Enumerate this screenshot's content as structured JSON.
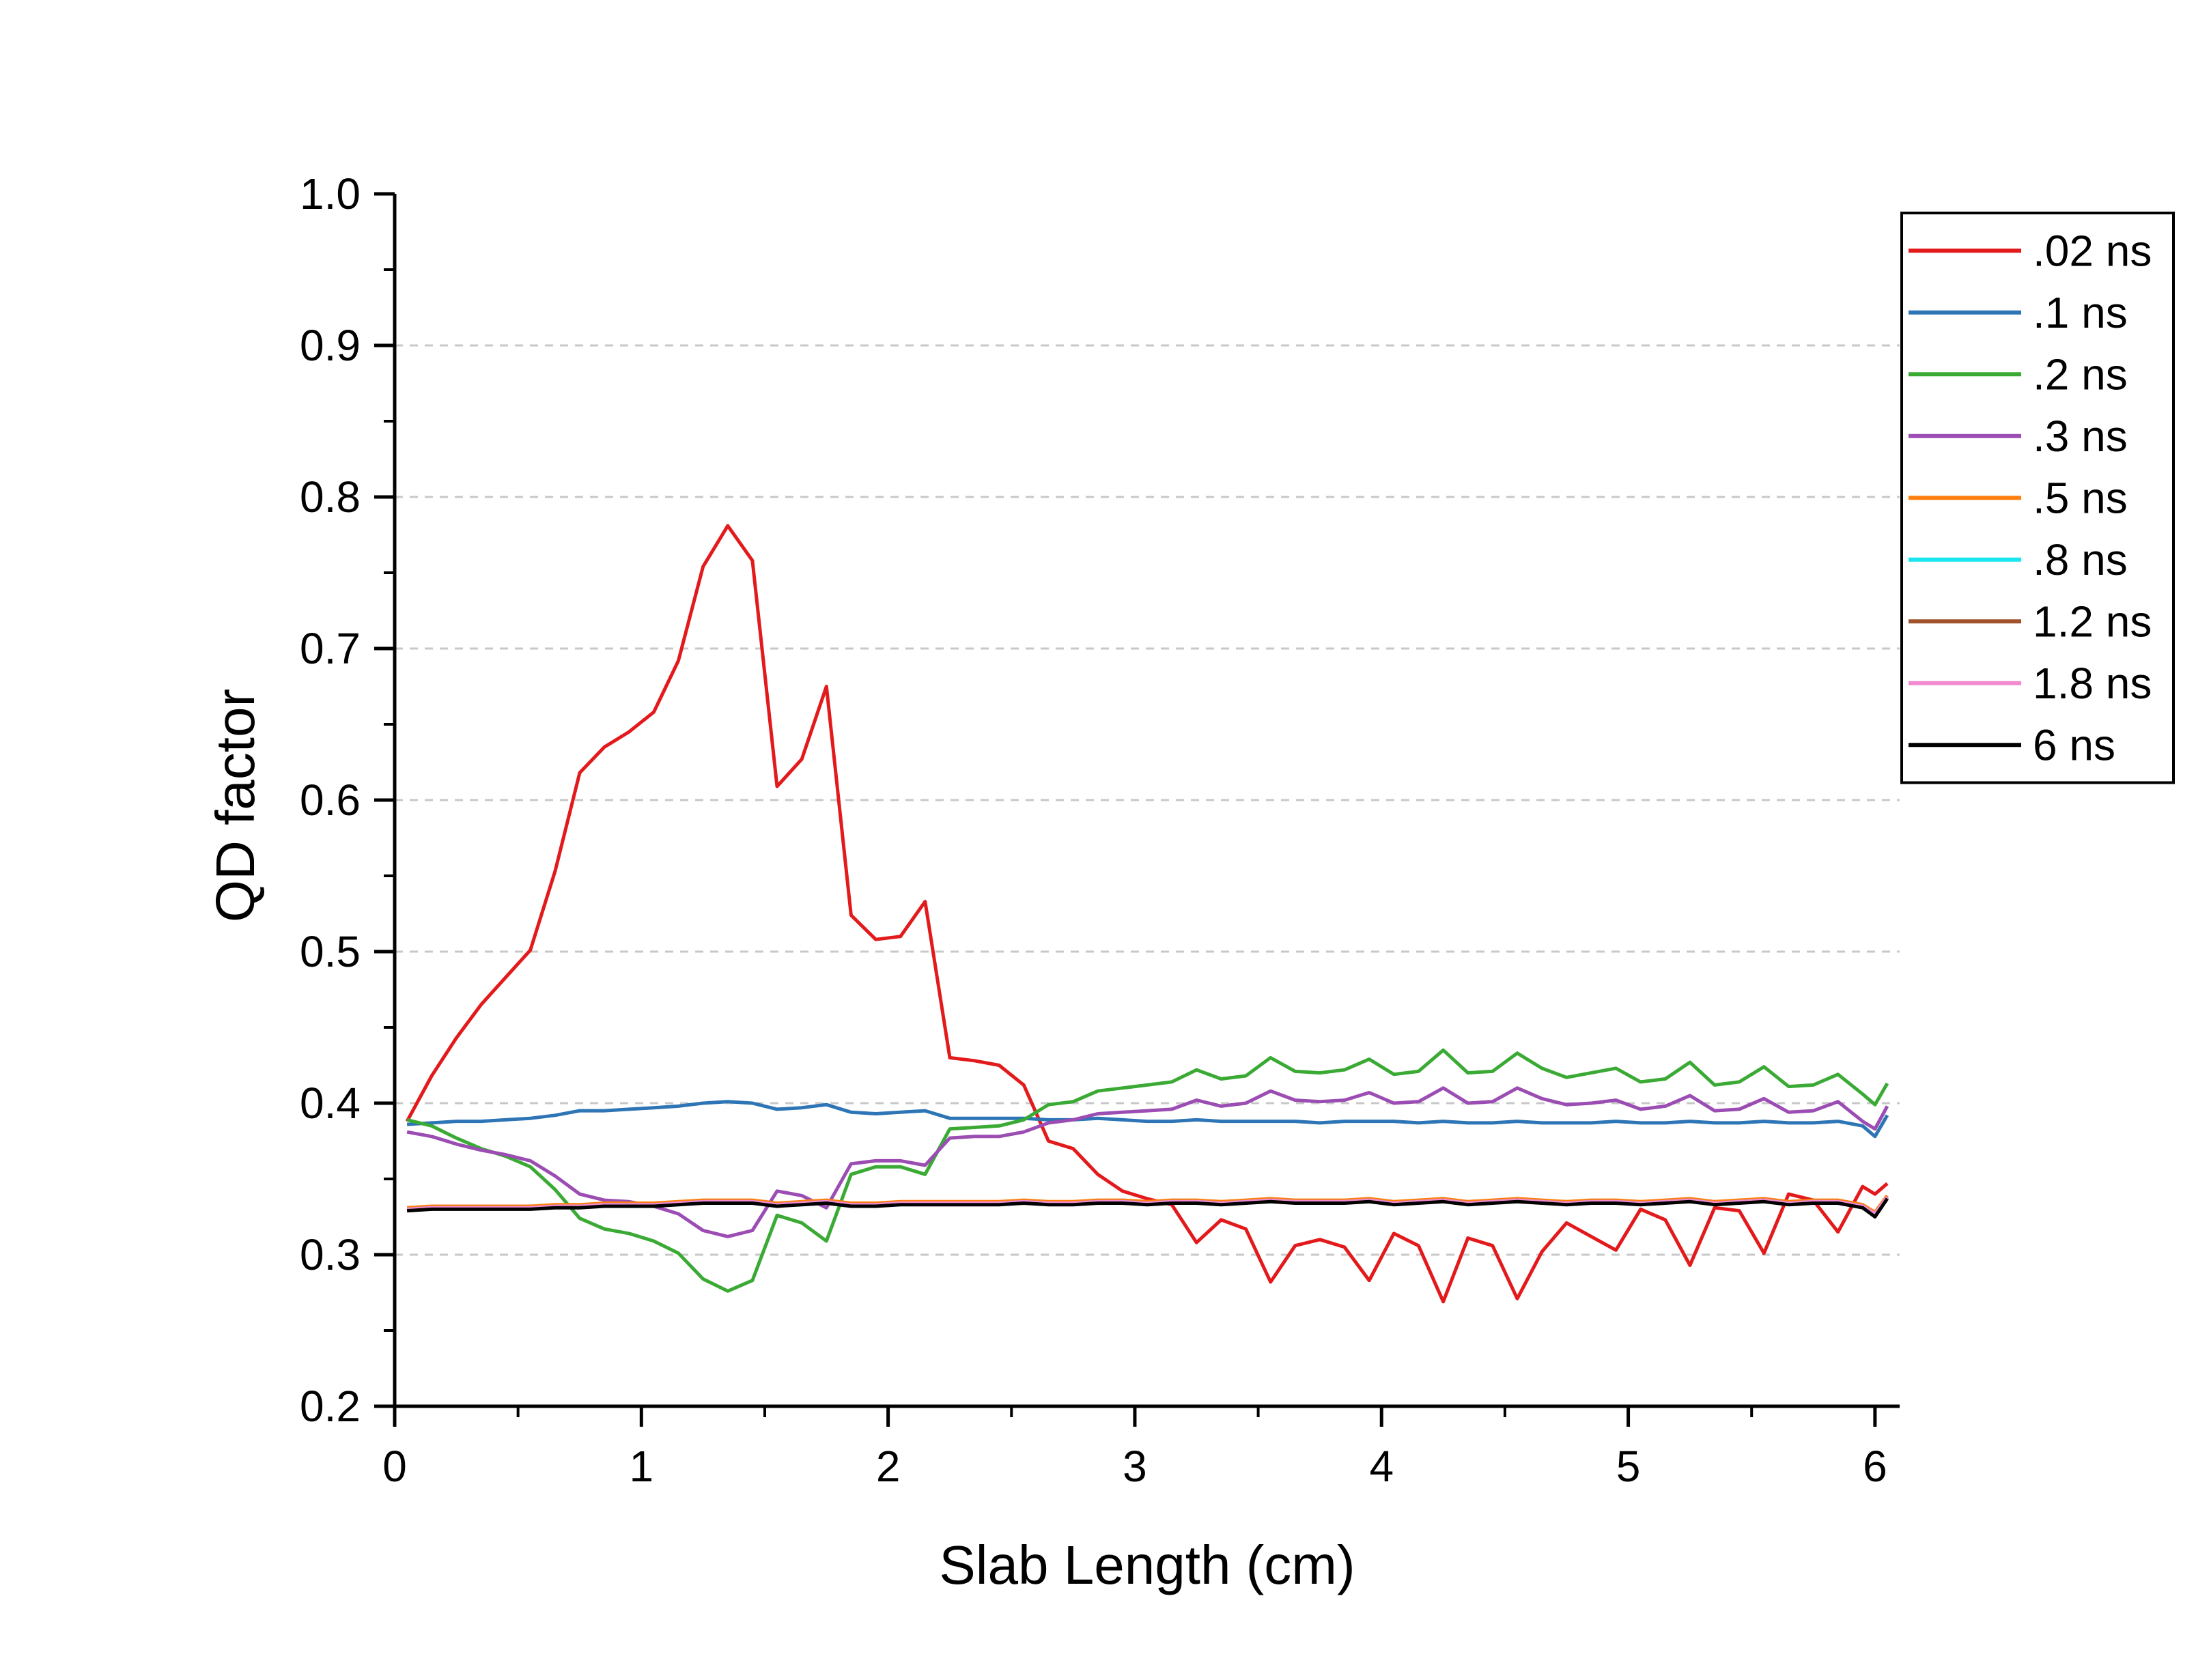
{
  "chart_data": {
    "type": "line",
    "title": "",
    "xlabel": "Slab Length (cm)",
    "ylabel": "QD factor",
    "xlim": [
      0,
      6.1
    ],
    "ylim": [
      0.2,
      1.0
    ],
    "x_ticks": [
      "0",
      "1",
      "2",
      "3",
      "4",
      "5",
      "6"
    ],
    "y_ticks": [
      "0.2",
      "0.3",
      "0.4",
      "0.5",
      "0.6",
      "0.7",
      "0.8",
      "0.9",
      "1.0"
    ],
    "grid": "horizontal dashed",
    "legend_position": "top-right",
    "x": [
      0.05,
      0.15,
      0.25,
      0.35,
      0.45,
      0.55,
      0.65,
      0.75,
      0.85,
      0.95,
      1.05,
      1.15,
      1.25,
      1.35,
      1.45,
      1.55,
      1.65,
      1.75,
      1.85,
      1.95,
      2.05,
      2.15,
      2.25,
      2.35,
      2.45,
      2.55,
      2.65,
      2.75,
      2.85,
      2.95,
      3.05,
      3.15,
      3.25,
      3.35,
      3.45,
      3.55,
      3.65,
      3.75,
      3.85,
      3.95,
      4.05,
      4.15,
      4.25,
      4.35,
      4.45,
      4.55,
      4.65,
      4.75,
      4.85,
      4.95,
      5.05,
      5.15,
      5.25,
      5.35,
      5.45,
      5.55,
      5.65,
      5.75,
      5.85,
      5.95,
      6.0,
      6.05
    ],
    "series": [
      {
        "name": ".02 ns",
        "color": "#e31a1c",
        "values": [
          0.388,
          0.418,
          0.443,
          0.465,
          0.483,
          0.501,
          0.553,
          0.618,
          0.635,
          0.645,
          0.658,
          0.692,
          0.754,
          0.781,
          0.758,
          0.609,
          0.627,
          0.675,
          0.524,
          0.508,
          0.51,
          0.533,
          0.43,
          0.428,
          0.425,
          0.412,
          0.375,
          0.37,
          0.353,
          0.342,
          0.337,
          0.333,
          0.308,
          0.323,
          0.317,
          0.282,
          0.306,
          0.31,
          0.305,
          0.283,
          0.314,
          0.306,
          0.269,
          0.311,
          0.306,
          0.271,
          0.302,
          0.321,
          0.312,
          0.303,
          0.33,
          0.323,
          0.293,
          0.331,
          0.329,
          0.301,
          0.34,
          0.336,
          0.315,
          0.345,
          0.34,
          0.347
        ]
      },
      {
        "name": ".1 ns",
        "color": "#2e75b6",
        "values": [
          0.386,
          0.387,
          0.388,
          0.388,
          0.389,
          0.39,
          0.392,
          0.395,
          0.395,
          0.396,
          0.397,
          0.398,
          0.4,
          0.401,
          0.4,
          0.396,
          0.397,
          0.399,
          0.394,
          0.393,
          0.394,
          0.395,
          0.39,
          0.39,
          0.39,
          0.39,
          0.389,
          0.389,
          0.39,
          0.389,
          0.388,
          0.388,
          0.389,
          0.388,
          0.388,
          0.388,
          0.388,
          0.387,
          0.388,
          0.388,
          0.388,
          0.387,
          0.388,
          0.387,
          0.387,
          0.388,
          0.387,
          0.387,
          0.387,
          0.388,
          0.387,
          0.387,
          0.388,
          0.387,
          0.387,
          0.388,
          0.387,
          0.387,
          0.388,
          0.385,
          0.378,
          0.392
        ]
      },
      {
        "name": ".2 ns",
        "color": "#3aaa35",
        "values": [
          0.389,
          0.385,
          0.377,
          0.37,
          0.365,
          0.358,
          0.343,
          0.324,
          0.317,
          0.314,
          0.309,
          0.301,
          0.284,
          0.276,
          0.283,
          0.326,
          0.321,
          0.309,
          0.353,
          0.358,
          0.358,
          0.353,
          0.383,
          0.384,
          0.385,
          0.389,
          0.399,
          0.401,
          0.408,
          0.41,
          0.412,
          0.414,
          0.422,
          0.416,
          0.418,
          0.43,
          0.421,
          0.42,
          0.422,
          0.429,
          0.419,
          0.421,
          0.435,
          0.42,
          0.421,
          0.433,
          0.423,
          0.417,
          0.42,
          0.423,
          0.414,
          0.416,
          0.427,
          0.412,
          0.414,
          0.424,
          0.411,
          0.412,
          0.419,
          0.406,
          0.399,
          0.413
        ]
      },
      {
        "name": ".3 ns",
        "color": "#9b4db3",
        "values": [
          0.381,
          0.378,
          0.373,
          0.369,
          0.366,
          0.362,
          0.352,
          0.34,
          0.336,
          0.335,
          0.332,
          0.327,
          0.316,
          0.312,
          0.316,
          0.342,
          0.339,
          0.331,
          0.36,
          0.362,
          0.362,
          0.359,
          0.377,
          0.378,
          0.378,
          0.381,
          0.387,
          0.389,
          0.393,
          0.394,
          0.395,
          0.396,
          0.402,
          0.398,
          0.4,
          0.408,
          0.402,
          0.401,
          0.402,
          0.407,
          0.4,
          0.401,
          0.41,
          0.4,
          0.401,
          0.41,
          0.403,
          0.399,
          0.4,
          0.402,
          0.396,
          0.398,
          0.405,
          0.395,
          0.396,
          0.403,
          0.394,
          0.395,
          0.401,
          0.388,
          0.383,
          0.398
        ]
      },
      {
        "name": ".5 ns",
        "color": "#ff7f0e",
        "values": [
          0.331,
          0.332,
          0.332,
          0.332,
          0.332,
          0.332,
          0.333,
          0.333,
          0.334,
          0.334,
          0.334,
          0.335,
          0.336,
          0.336,
          0.336,
          0.334,
          0.335,
          0.336,
          0.334,
          0.334,
          0.335,
          0.335,
          0.335,
          0.335,
          0.335,
          0.336,
          0.335,
          0.335,
          0.336,
          0.336,
          0.335,
          0.336,
          0.336,
          0.335,
          0.336,
          0.337,
          0.336,
          0.336,
          0.336,
          0.337,
          0.335,
          0.336,
          0.337,
          0.335,
          0.336,
          0.337,
          0.336,
          0.335,
          0.336,
          0.336,
          0.335,
          0.336,
          0.337,
          0.335,
          0.336,
          0.337,
          0.335,
          0.336,
          0.336,
          0.333,
          0.328,
          0.339
        ]
      },
      {
        "name": ".8 ns",
        "color": "#17e6f0",
        "values": [
          0.33,
          0.331,
          0.331,
          0.331,
          0.331,
          0.331,
          0.332,
          0.332,
          0.333,
          0.333,
          0.333,
          0.334,
          0.335,
          0.335,
          0.335,
          0.333,
          0.334,
          0.335,
          0.333,
          0.333,
          0.334,
          0.334,
          0.334,
          0.334,
          0.334,
          0.335,
          0.334,
          0.334,
          0.335,
          0.335,
          0.334,
          0.335,
          0.335,
          0.334,
          0.335,
          0.336,
          0.335,
          0.335,
          0.335,
          0.336,
          0.334,
          0.335,
          0.336,
          0.334,
          0.335,
          0.336,
          0.335,
          0.334,
          0.335,
          0.335,
          0.334,
          0.335,
          0.336,
          0.334,
          0.335,
          0.336,
          0.334,
          0.335,
          0.335,
          0.332,
          0.327,
          0.338
        ]
      },
      {
        "name": "1.2 ns",
        "color": "#a0522d",
        "values": [
          0.33,
          0.331,
          0.331,
          0.331,
          0.331,
          0.331,
          0.332,
          0.332,
          0.333,
          0.333,
          0.333,
          0.334,
          0.335,
          0.335,
          0.335,
          0.333,
          0.334,
          0.335,
          0.333,
          0.333,
          0.334,
          0.334,
          0.334,
          0.334,
          0.334,
          0.335,
          0.334,
          0.334,
          0.335,
          0.335,
          0.334,
          0.335,
          0.335,
          0.334,
          0.335,
          0.336,
          0.335,
          0.335,
          0.335,
          0.336,
          0.334,
          0.335,
          0.336,
          0.334,
          0.335,
          0.336,
          0.335,
          0.334,
          0.335,
          0.335,
          0.334,
          0.335,
          0.336,
          0.334,
          0.335,
          0.336,
          0.334,
          0.335,
          0.335,
          0.332,
          0.327,
          0.338
        ]
      },
      {
        "name": "1.8 ns",
        "color": "#f28ad1",
        "values": [
          0.33,
          0.331,
          0.331,
          0.331,
          0.331,
          0.331,
          0.332,
          0.332,
          0.333,
          0.333,
          0.333,
          0.334,
          0.335,
          0.335,
          0.335,
          0.333,
          0.334,
          0.335,
          0.333,
          0.333,
          0.334,
          0.334,
          0.334,
          0.334,
          0.334,
          0.335,
          0.334,
          0.334,
          0.335,
          0.335,
          0.334,
          0.335,
          0.335,
          0.334,
          0.335,
          0.336,
          0.335,
          0.335,
          0.335,
          0.336,
          0.334,
          0.335,
          0.336,
          0.334,
          0.335,
          0.336,
          0.335,
          0.334,
          0.335,
          0.335,
          0.334,
          0.335,
          0.336,
          0.334,
          0.335,
          0.336,
          0.334,
          0.335,
          0.335,
          0.332,
          0.327,
          0.338
        ]
      },
      {
        "name": "6 ns",
        "color": "#000000",
        "values": [
          0.329,
          0.33,
          0.33,
          0.33,
          0.33,
          0.33,
          0.331,
          0.331,
          0.332,
          0.332,
          0.332,
          0.333,
          0.334,
          0.334,
          0.334,
          0.332,
          0.333,
          0.334,
          0.332,
          0.332,
          0.333,
          0.333,
          0.333,
          0.333,
          0.333,
          0.334,
          0.333,
          0.333,
          0.334,
          0.334,
          0.333,
          0.334,
          0.334,
          0.333,
          0.334,
          0.335,
          0.334,
          0.334,
          0.334,
          0.335,
          0.333,
          0.334,
          0.335,
          0.333,
          0.334,
          0.335,
          0.334,
          0.333,
          0.334,
          0.334,
          0.333,
          0.334,
          0.335,
          0.333,
          0.334,
          0.335,
          0.333,
          0.334,
          0.334,
          0.331,
          0.325,
          0.337
        ]
      }
    ]
  }
}
